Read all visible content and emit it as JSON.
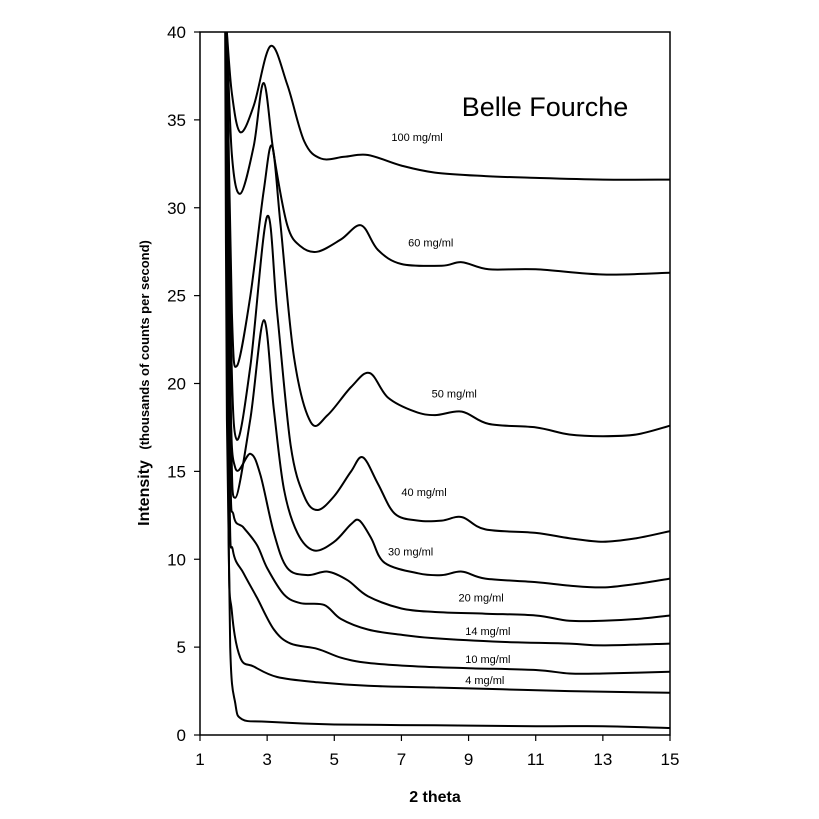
{
  "chart_data": {
    "type": "line",
    "title": "Belle Fourche",
    "xlabel": "2 theta",
    "ylabel_main": "Intensity",
    "ylabel_sub": "(thousands of counts per second)",
    "xlim": [
      1,
      15
    ],
    "ylim": [
      0,
      40
    ],
    "xticks": [
      "1",
      "3",
      "5",
      "7",
      "9",
      "11",
      "13",
      "15"
    ],
    "yticks": [
      "0",
      "5",
      "10",
      "15",
      "20",
      "25",
      "30",
      "35",
      "40"
    ],
    "grid": false,
    "series": [
      {
        "name": "100 mg/ml",
        "label_at": [
          6.7,
          33.8
        ],
        "points": [
          [
            1.8,
            40
          ],
          [
            1.95,
            36.5
          ],
          [
            2.2,
            34.3
          ],
          [
            2.6,
            35.8
          ],
          [
            3.1,
            39.2
          ],
          [
            3.6,
            37
          ],
          [
            4.1,
            33.8
          ],
          [
            4.6,
            32.8
          ],
          [
            5.3,
            32.9
          ],
          [
            6,
            33.0
          ],
          [
            7,
            32.4
          ],
          [
            8,
            32.0
          ],
          [
            9.5,
            31.8
          ],
          [
            11,
            31.7
          ],
          [
            13,
            31.6
          ],
          [
            15,
            31.6
          ]
        ]
      },
      {
        "name": "60 mg/ml",
        "label_at": [
          7.2,
          27.8
        ],
        "points": [
          [
            1.8,
            40
          ],
          [
            1.95,
            33
          ],
          [
            2.2,
            30.8
          ],
          [
            2.6,
            33.5
          ],
          [
            2.9,
            37.1
          ],
          [
            3.2,
            33
          ],
          [
            3.6,
            29
          ],
          [
            4.0,
            27.8
          ],
          [
            4.5,
            27.5
          ],
          [
            5.2,
            28.2
          ],
          [
            5.8,
            29.0
          ],
          [
            6.3,
            27.6
          ],
          [
            7.0,
            26.8
          ],
          [
            8.2,
            26.7
          ],
          [
            8.8,
            26.9
          ],
          [
            9.6,
            26.5
          ],
          [
            11,
            26.5
          ],
          [
            13,
            26.2
          ],
          [
            15,
            26.3
          ]
        ]
      },
      {
        "name": "50 mg/ml",
        "label_at": [
          7.9,
          19.2
        ],
        "points": [
          [
            1.8,
            40
          ],
          [
            1.95,
            24
          ],
          [
            2.1,
            21
          ],
          [
            2.5,
            25
          ],
          [
            2.9,
            31
          ],
          [
            3.15,
            33.5
          ],
          [
            3.4,
            29
          ],
          [
            3.8,
            21.5
          ],
          [
            4.3,
            17.8
          ],
          [
            4.8,
            18.2
          ],
          [
            5.5,
            19.8
          ],
          [
            6.05,
            20.6
          ],
          [
            6.6,
            19.2
          ],
          [
            7.4,
            18.4
          ],
          [
            8,
            18.2
          ],
          [
            8.8,
            18.4
          ],
          [
            9.6,
            17.7
          ],
          [
            11,
            17.5
          ],
          [
            12,
            17.1
          ],
          [
            13,
            17.0
          ],
          [
            14,
            17.1
          ],
          [
            15,
            17.6
          ]
        ]
      },
      {
        "name": "40 mg/ml",
        "label_at": [
          7.0,
          13.6
        ],
        "points": [
          [
            1.8,
            40
          ],
          [
            1.93,
            22
          ],
          [
            2.1,
            16.8
          ],
          [
            2.5,
            21
          ],
          [
            3.0,
            29.5
          ],
          [
            3.3,
            24
          ],
          [
            3.7,
            16.5
          ],
          [
            4.1,
            13.6
          ],
          [
            4.5,
            12.8
          ],
          [
            5.0,
            13.6
          ],
          [
            5.5,
            15.0
          ],
          [
            5.85,
            15.8
          ],
          [
            6.3,
            14.3
          ],
          [
            6.8,
            12.6
          ],
          [
            7.5,
            12.2
          ],
          [
            8.2,
            12.2
          ],
          [
            8.8,
            12.4
          ],
          [
            9.5,
            11.7
          ],
          [
            11,
            11.5
          ],
          [
            12,
            11.2
          ],
          [
            13,
            11.0
          ],
          [
            14,
            11.2
          ],
          [
            15,
            11.6
          ]
        ]
      },
      {
        "name": "30 mg/ml",
        "label_at": [
          6.6,
          10.2
        ],
        "points": [
          [
            1.8,
            40
          ],
          [
            1.92,
            18
          ],
          [
            2.05,
            13.5
          ],
          [
            2.5,
            18
          ],
          [
            2.9,
            23.6
          ],
          [
            3.2,
            18.5
          ],
          [
            3.5,
            14
          ],
          [
            3.9,
            11.5
          ],
          [
            4.4,
            10.5
          ],
          [
            5.0,
            11.0
          ],
          [
            5.5,
            12.0
          ],
          [
            5.75,
            12.2
          ],
          [
            6.1,
            11.2
          ],
          [
            6.5,
            9.8
          ],
          [
            7.5,
            9.2
          ],
          [
            8.2,
            9.1
          ],
          [
            8.8,
            9.3
          ],
          [
            9.5,
            8.9
          ],
          [
            11,
            8.7
          ],
          [
            12,
            8.5
          ],
          [
            13,
            8.4
          ],
          [
            14,
            8.6
          ],
          [
            15,
            8.9
          ]
        ]
      },
      {
        "name": "20 mg/ml",
        "label_at": [
          8.7,
          7.6
        ],
        "points": [
          [
            1.8,
            40
          ],
          [
            1.9,
            20
          ],
          [
            2.05,
            15.2
          ],
          [
            2.5,
            16.0
          ],
          [
            2.8,
            14.8
          ],
          [
            3.2,
            11.5
          ],
          [
            3.6,
            9.5
          ],
          [
            4.2,
            9.1
          ],
          [
            4.8,
            9.3
          ],
          [
            5.4,
            8.8
          ],
          [
            6,
            7.9
          ],
          [
            7,
            7.2
          ],
          [
            8,
            7.0
          ],
          [
            9.5,
            6.9
          ],
          [
            11,
            6.8
          ],
          [
            12,
            6.5
          ],
          [
            13,
            6.5
          ],
          [
            14,
            6.6
          ],
          [
            15,
            6.8
          ]
        ]
      },
      {
        "name": "14 mg/ml",
        "label_at": [
          8.9,
          5.7
        ],
        "points": [
          [
            1.8,
            40
          ],
          [
            1.9,
            16
          ],
          [
            2.0,
            12.5
          ],
          [
            2.3,
            11.8
          ],
          [
            2.7,
            10.8
          ],
          [
            3.0,
            9.5
          ],
          [
            3.5,
            8.0
          ],
          [
            4.0,
            7.5
          ],
          [
            4.7,
            7.4
          ],
          [
            5.2,
            6.6
          ],
          [
            6,
            6.0
          ],
          [
            7,
            5.7
          ],
          [
            8,
            5.5
          ],
          [
            10,
            5.3
          ],
          [
            12,
            5.2
          ],
          [
            13,
            5.1
          ],
          [
            15,
            5.2
          ]
        ]
      },
      {
        "name": "10 mg/ml",
        "label_at": [
          8.9,
          4.1
        ],
        "points": [
          [
            1.8,
            40
          ],
          [
            1.88,
            14
          ],
          [
            1.98,
            10.5
          ],
          [
            2.3,
            9.2
          ],
          [
            2.7,
            7.8
          ],
          [
            3.2,
            6.0
          ],
          [
            3.7,
            5.2
          ],
          [
            4.5,
            4.9
          ],
          [
            5.2,
            4.4
          ],
          [
            6,
            4.1
          ],
          [
            7.5,
            3.9
          ],
          [
            9,
            3.8
          ],
          [
            11,
            3.7
          ],
          [
            12,
            3.5
          ],
          [
            13,
            3.5
          ],
          [
            15,
            3.6
          ]
        ]
      },
      {
        "name": "4 mg/ml",
        "label_at": [
          8.9,
          2.9
        ],
        "points": [
          [
            1.8,
            40
          ],
          [
            1.85,
            12
          ],
          [
            1.95,
            7
          ],
          [
            2.2,
            4.4
          ],
          [
            2.6,
            3.9
          ],
          [
            3.3,
            3.3
          ],
          [
            4.5,
            3.0
          ],
          [
            6,
            2.8
          ],
          [
            8,
            2.7
          ],
          [
            10,
            2.6
          ],
          [
            12,
            2.5
          ],
          [
            15,
            2.4
          ]
        ]
      },
      {
        "name": "",
        "label_at": null,
        "points": [
          [
            1.75,
            40
          ],
          [
            1.8,
            18
          ],
          [
            1.9,
            5
          ],
          [
            2.05,
            1.8
          ],
          [
            2.25,
            0.9
          ],
          [
            3,
            0.75
          ],
          [
            5,
            0.6
          ],
          [
            8,
            0.55
          ],
          [
            11,
            0.5
          ],
          [
            13,
            0.5
          ],
          [
            15,
            0.4
          ]
        ]
      }
    ]
  }
}
